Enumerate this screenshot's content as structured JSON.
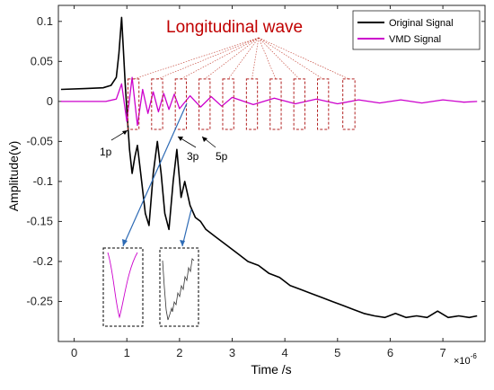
{
  "chart_data": {
    "type": "line",
    "title": "",
    "xlabel": "Time /s",
    "ylabel": "Amplitude(v)",
    "x_multiplier": "×10",
    "x_multiplier_exp": "-6",
    "xlim": [
      -0.3,
      7.8
    ],
    "ylim": [
      -0.3,
      0.12
    ],
    "xticks": [
      0,
      1,
      2,
      3,
      4,
      5,
      6,
      7
    ],
    "yticks": [
      0.1,
      0.05,
      0,
      -0.05,
      -0.1,
      -0.15,
      -0.2,
      -0.25
    ],
    "xtick_labels": [
      "0",
      "1",
      "2",
      "3",
      "4",
      "5",
      "6",
      "7"
    ],
    "ytick_labels": [
      "0.1",
      "0.05",
      "0",
      "-0.05",
      "-0.1",
      "-0.15",
      "-0.2",
      "-0.25"
    ],
    "grid": false,
    "legend_position": "top-right",
    "series": [
      {
        "name": "Original Signal",
        "color": "#000000",
        "x": [
          -0.25,
          0.2,
          0.55,
          0.7,
          0.8,
          0.85,
          0.9,
          0.93,
          0.97,
          1.0,
          1.05,
          1.1,
          1.15,
          1.2,
          1.28,
          1.35,
          1.42,
          1.5,
          1.58,
          1.65,
          1.72,
          1.8,
          1.88,
          1.95,
          2.03,
          2.1,
          2.2,
          2.3,
          2.4,
          2.5,
          2.7,
          2.9,
          3.1,
          3.3,
          3.5,
          3.7,
          3.9,
          4.1,
          4.3,
          4.5,
          4.7,
          4.9,
          5.1,
          5.3,
          5.5,
          5.7,
          5.9,
          6.1,
          6.3,
          6.5,
          6.7,
          6.9,
          7.1,
          7.3,
          7.5,
          7.65
        ],
        "y": [
          0.015,
          0.016,
          0.017,
          0.02,
          0.03,
          0.06,
          0.105,
          0.07,
          0.02,
          -0.01,
          -0.06,
          -0.09,
          -0.07,
          -0.055,
          -0.1,
          -0.14,
          -0.155,
          -0.09,
          -0.05,
          -0.09,
          -0.14,
          -0.16,
          -0.1,
          -0.06,
          -0.12,
          -0.1,
          -0.13,
          -0.145,
          -0.15,
          -0.16,
          -0.17,
          -0.18,
          -0.19,
          -0.2,
          -0.205,
          -0.215,
          -0.22,
          -0.23,
          -0.235,
          -0.24,
          -0.245,
          -0.25,
          -0.255,
          -0.26,
          -0.265,
          -0.268,
          -0.27,
          -0.265,
          -0.27,
          -0.268,
          -0.27,
          -0.262,
          -0.27,
          -0.268,
          -0.27,
          -0.268
        ]
      },
      {
        "name": "VMD Signal",
        "color": "#cc00cc",
        "x": [
          -0.25,
          0.6,
          0.8,
          0.9,
          1.0,
          1.1,
          1.2,
          1.3,
          1.4,
          1.5,
          1.6,
          1.7,
          1.8,
          1.9,
          2.0,
          2.2,
          2.4,
          2.6,
          2.8,
          3.0,
          3.4,
          3.8,
          4.2,
          4.6,
          5.0,
          5.4,
          5.8,
          6.2,
          6.6,
          7.0,
          7.4,
          7.65
        ],
        "y": [
          0,
          0,
          0.003,
          0.022,
          -0.025,
          0.03,
          -0.03,
          0.015,
          -0.015,
          0.012,
          -0.013,
          0.01,
          -0.01,
          0.009,
          -0.009,
          0.007,
          -0.007,
          0.006,
          -0.006,
          0.005,
          -0.004,
          0.004,
          -0.003,
          0.003,
          -0.003,
          0.002,
          -0.002,
          0.002,
          -0.002,
          0.002,
          -0.001,
          0
        ]
      }
    ],
    "annotations": {
      "title": "Longitudinal wave",
      "labels": [
        "1p",
        "3p",
        "5p"
      ],
      "title_color": "#c00000"
    },
    "windows": [
      {
        "x0": 1.02,
        "x1": 1.23
      },
      {
        "x0": 1.47,
        "x1": 1.68
      },
      {
        "x0": 1.92,
        "x1": 2.13
      },
      {
        "x0": 2.37,
        "x1": 2.58
      },
      {
        "x0": 2.82,
        "x1": 3.03
      },
      {
        "x0": 3.27,
        "x1": 3.48
      },
      {
        "x0": 3.72,
        "x1": 3.93
      },
      {
        "x0": 4.17,
        "x1": 4.38
      },
      {
        "x0": 4.62,
        "x1": 4.83
      },
      {
        "x0": 5.1,
        "x1": 5.33
      }
    ],
    "window_y": [
      0.028,
      -0.035
    ]
  }
}
